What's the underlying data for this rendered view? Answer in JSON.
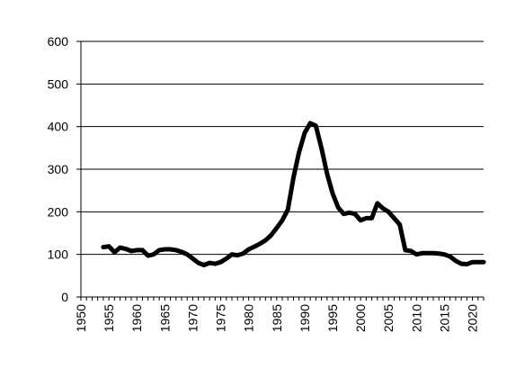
{
  "chart_data": {
    "type": "line",
    "title": "",
    "xlabel": "",
    "ylabel": "",
    "xlim": [
      1950,
      2022
    ],
    "ylim": [
      0,
      600
    ],
    "x_ticks": [
      "1950",
      "1955",
      "1960",
      "1965",
      "1970",
      "1975",
      "1980",
      "1985",
      "1990",
      "1995",
      "2000",
      "2005",
      "2010",
      "2015",
      "2020"
    ],
    "y_ticks": [
      "0",
      "100",
      "200",
      "300",
      "400",
      "500",
      "600"
    ],
    "grid": "horizontal",
    "legend": "none",
    "series": [
      {
        "color": "#000000",
        "x": [
          1954,
          1955,
          1956,
          1957,
          1958,
          1959,
          1960,
          1961,
          1962,
          1963,
          1964,
          1965,
          1966,
          1967,
          1968,
          1969,
          1970,
          1971,
          1972,
          1973,
          1974,
          1975,
          1976,
          1977,
          1978,
          1979,
          1980,
          1981,
          1982,
          1983,
          1984,
          1985,
          1986,
          1987,
          1988,
          1989,
          1990,
          1991,
          1992,
          1993,
          1994,
          1995,
          1996,
          1997,
          1998,
          1999,
          2000,
          2001,
          2002,
          2003,
          2004,
          2005,
          2006,
          2007,
          2008,
          2009,
          2010,
          2011,
          2012,
          2013,
          2014,
          2015,
          2016,
          2017,
          2018,
          2019,
          2020,
          2021,
          2022
        ],
        "y": [
          117,
          119,
          105,
          116,
          113,
          108,
          110,
          110,
          97,
          100,
          110,
          112,
          112,
          110,
          106,
          100,
          90,
          80,
          75,
          80,
          78,
          82,
          90,
          100,
          98,
          102,
          112,
          118,
          125,
          133,
          145,
          162,
          180,
          205,
          280,
          340,
          385,
          408,
          402,
          350,
          290,
          243,
          210,
          195,
          198,
          195,
          180,
          185,
          185,
          220,
          208,
          200,
          185,
          170,
          110,
          108,
          100,
          103,
          103,
          103,
          102,
          100,
          95,
          85,
          78,
          77,
          82,
          82,
          82
        ]
      }
    ]
  }
}
